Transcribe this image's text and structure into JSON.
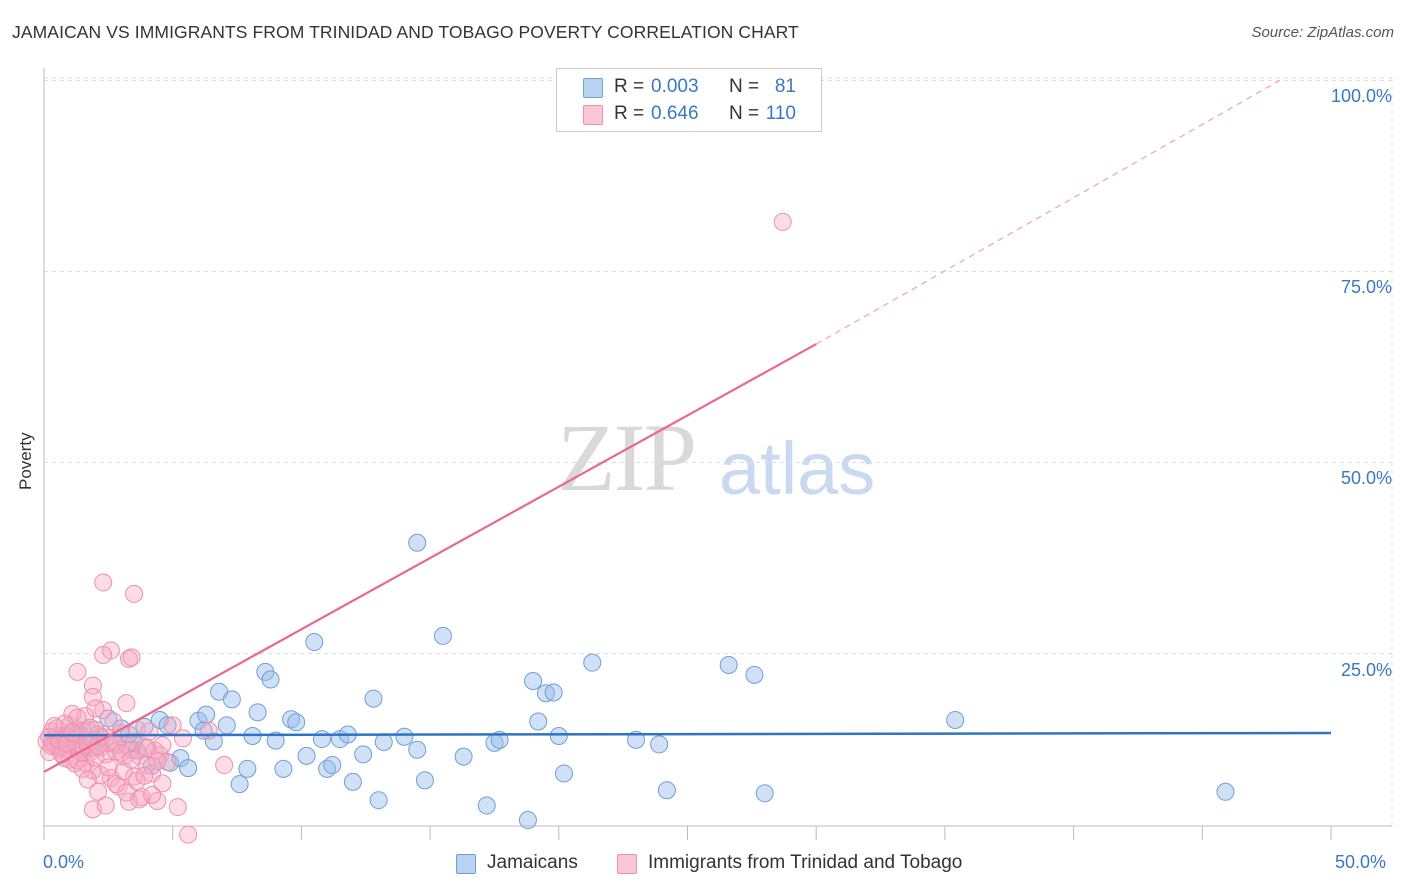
{
  "header": {
    "title": "JAMAICAN VS IMMIGRANTS FROM TRINIDAD AND TOBAGO POVERTY CORRELATION CHART",
    "source": "Source: ZipAtlas.com"
  },
  "watermark": {
    "zip": "ZIP",
    "atlas": "atlas"
  },
  "legend": {
    "rows": [
      {
        "r_label": "R =",
        "r_value": "0.003",
        "n_label": "N =",
        "n_value": "81",
        "color": "#6f9fd8"
      },
      {
        "r_label": "R =",
        "r_value": "0.646",
        "n_label": "N =",
        "n_value": "110",
        "color": "#ef8fab"
      }
    ]
  },
  "bottom_legend": [
    {
      "label": "Jamaicans",
      "color": "#6f9fd8"
    },
    {
      "label": "Immigrants from Trinidad and Tobago",
      "color": "#ef8fab"
    }
  ],
  "colors": {
    "blue_line": "#2f73c4",
    "pink_line": "#e8688f",
    "tick_text": "#3b78c3",
    "grid": "#dddddd"
  },
  "chart_data": {
    "type": "scatter",
    "title": "JAMAICAN VS IMMIGRANTS FROM TRINIDAD AND TOBAGO POVERTY CORRELATION CHART",
    "xlabel": "",
    "ylabel": "Poverty",
    "xlim": [
      0,
      50
    ],
    "ylim": [
      0,
      105
    ],
    "x_tick_labels": [
      "0.0%",
      "50.0%"
    ],
    "y_ticks": [
      25,
      50,
      75,
      100
    ],
    "y_tick_labels": [
      "25.0%",
      "50.0%",
      "75.0%",
      "100.0%"
    ],
    "grid": true,
    "series": [
      {
        "name": "Jamaicans",
        "R": 0.003,
        "N": 81,
        "trend": {
          "x": [
            0,
            50
          ],
          "y": [
            14.3,
            14.6
          ]
        },
        "points": [
          [
            0.3,
            13.5
          ],
          [
            0.5,
            14.2
          ],
          [
            0.7,
            12.8
          ],
          [
            0.9,
            13.9
          ],
          [
            1.1,
            14.8
          ],
          [
            1.3,
            13.2
          ],
          [
            1.5,
            12.5
          ],
          [
            1.7,
            15.0
          ],
          [
            1.9,
            13.6
          ],
          [
            2.2,
            14.1
          ],
          [
            2.5,
            16.5
          ],
          [
            2.8,
            13.0
          ],
          [
            3.0,
            15.2
          ],
          [
            3.3,
            14.4
          ],
          [
            3.6,
            12.3
          ],
          [
            3.9,
            15.4
          ],
          [
            4.2,
            10.3
          ],
          [
            4.5,
            16.3
          ],
          [
            4.9,
            10.7
          ],
          [
            5.3,
            11.3
          ],
          [
            5.6,
            10.0
          ],
          [
            6.0,
            16.2
          ],
          [
            6.3,
            17.0
          ],
          [
            6.6,
            13.5
          ],
          [
            6.8,
            20.0
          ],
          [
            7.1,
            15.6
          ],
          [
            7.3,
            19.0
          ],
          [
            7.6,
            7.9
          ],
          [
            7.9,
            9.9
          ],
          [
            8.1,
            14.2
          ],
          [
            8.3,
            17.3
          ],
          [
            8.6,
            22.6
          ],
          [
            8.8,
            21.6
          ],
          [
            9.0,
            13.6
          ],
          [
            9.3,
            9.9
          ],
          [
            9.6,
            16.4
          ],
          [
            9.8,
            16.0
          ],
          [
            10.2,
            11.6
          ],
          [
            10.5,
            26.5
          ],
          [
            10.8,
            13.8
          ],
          [
            11.0,
            9.9
          ],
          [
            11.2,
            10.4
          ],
          [
            11.5,
            13.8
          ],
          [
            11.8,
            14.4
          ],
          [
            12.0,
            8.2
          ],
          [
            12.4,
            11.8
          ],
          [
            12.8,
            19.1
          ],
          [
            13.0,
            5.8
          ],
          [
            13.2,
            13.4
          ],
          [
            14.0,
            14.1
          ],
          [
            14.5,
            12.4
          ],
          [
            14.8,
            8.4
          ],
          [
            15.5,
            27.3
          ],
          [
            16.3,
            11.5
          ],
          [
            17.2,
            5.1
          ],
          [
            17.5,
            13.3
          ],
          [
            17.7,
            13.7
          ],
          [
            18.8,
            3.2
          ],
          [
            19.0,
            21.4
          ],
          [
            19.2,
            16.1
          ],
          [
            19.5,
            19.8
          ],
          [
            19.8,
            19.9
          ],
          [
            20.0,
            14.2
          ],
          [
            20.2,
            9.3
          ],
          [
            21.3,
            23.8
          ],
          [
            23.0,
            13.7
          ],
          [
            23.9,
            13.1
          ],
          [
            24.2,
            7.1
          ],
          [
            26.6,
            23.5
          ],
          [
            27.6,
            22.2
          ],
          [
            28.0,
            6.7
          ],
          [
            35.4,
            16.3
          ],
          [
            45.9,
            6.9
          ],
          [
            14.5,
            39.5
          ],
          [
            3.5,
            13.4
          ],
          [
            1.0,
            14.0
          ],
          [
            0.8,
            13.1
          ],
          [
            2.0,
            12.7
          ],
          [
            4.8,
            15.6
          ],
          [
            6.2,
            14.9
          ],
          [
            1.4,
            14.4
          ]
        ]
      },
      {
        "name": "Immigrants from Trinidad and Tobago",
        "R": 0.646,
        "N": 110,
        "trend": {
          "x": [
            0,
            30
          ],
          "y": [
            9.5,
            65.5
          ]
        },
        "trend_extension": {
          "x": [
            30,
            48
          ],
          "y": [
            65.5,
            100
          ]
        },
        "points": [
          [
            0.1,
            13.5
          ],
          [
            0.2,
            12.1
          ],
          [
            0.3,
            14.8
          ],
          [
            0.4,
            13.0
          ],
          [
            0.5,
            15.2
          ],
          [
            0.6,
            12.4
          ],
          [
            0.7,
            13.8
          ],
          [
            0.8,
            11.3
          ],
          [
            0.9,
            14.2
          ],
          [
            1.0,
            15.6
          ],
          [
            1.1,
            12.9
          ],
          [
            1.2,
            10.6
          ],
          [
            1.3,
            14.5
          ],
          [
            1.4,
            13.2
          ],
          [
            1.5,
            11.9
          ],
          [
            1.6,
            16.8
          ],
          [
            1.7,
            13.6
          ],
          [
            1.8,
            12.1
          ],
          [
            1.9,
            9.7
          ],
          [
            2.0,
            15.0
          ],
          [
            2.1,
            14.4
          ],
          [
            2.2,
            12.7
          ],
          [
            2.3,
            17.6
          ],
          [
            2.4,
            11.8
          ],
          [
            2.5,
            13.3
          ],
          [
            2.6,
            8.7
          ],
          [
            2.7,
            16.1
          ],
          [
            2.8,
            12.2
          ],
          [
            2.9,
            7.6
          ],
          [
            3.0,
            14.6
          ],
          [
            3.1,
            11.5
          ],
          [
            3.2,
            13.0
          ],
          [
            3.3,
            5.6
          ],
          [
            3.4,
            12.4
          ],
          [
            3.5,
            8.9
          ],
          [
            3.6,
            15.1
          ],
          [
            3.7,
            11.6
          ],
          [
            3.8,
            6.2
          ],
          [
            3.9,
            12.8
          ],
          [
            4.0,
            10.4
          ],
          [
            4.1,
            14.8
          ],
          [
            4.2,
            9.3
          ],
          [
            4.3,
            12.3
          ],
          [
            4.4,
            5.7
          ],
          [
            4.5,
            11.7
          ],
          [
            4.6,
            13.0
          ],
          [
            4.8,
            10.8
          ],
          [
            5.0,
            15.6
          ],
          [
            5.2,
            4.9
          ],
          [
            5.4,
            13.9
          ],
          [
            5.6,
            1.3
          ],
          [
            7.0,
            10.4
          ],
          [
            2.3,
            34.3
          ],
          [
            3.5,
            32.8
          ],
          [
            2.6,
            25.4
          ],
          [
            3.3,
            24.3
          ],
          [
            3.4,
            24.5
          ],
          [
            2.3,
            24.8
          ],
          [
            1.3,
            22.6
          ],
          [
            1.9,
            20.8
          ],
          [
            1.9,
            19.3
          ],
          [
            2.0,
            17.8
          ],
          [
            3.2,
            18.5
          ],
          [
            1.1,
            17.1
          ],
          [
            1.3,
            16.6
          ],
          [
            0.5,
            13.9
          ],
          [
            0.6,
            12.7
          ],
          [
            0.7,
            14.2
          ],
          [
            0.8,
            15.8
          ],
          [
            0.9,
            12.5
          ],
          [
            1.0,
            11.1
          ],
          [
            1.2,
            13.7
          ],
          [
            1.4,
            12.2
          ],
          [
            1.5,
            14.9
          ],
          [
            1.6,
            10.7
          ],
          [
            1.7,
            13.1
          ],
          [
            1.8,
            15.3
          ],
          [
            2.0,
            11.4
          ],
          [
            2.1,
            12.9
          ],
          [
            2.2,
            9.1
          ],
          [
            2.4,
            14.0
          ],
          [
            2.5,
            10.1
          ],
          [
            2.7,
            13.4
          ],
          [
            2.8,
            7.9
          ],
          [
            3.0,
            12.0
          ],
          [
            3.1,
            9.6
          ],
          [
            3.2,
            6.8
          ],
          [
            3.4,
            11.1
          ],
          [
            3.6,
            8.3
          ],
          [
            3.7,
            5.9
          ],
          [
            3.9,
            9.0
          ],
          [
            4.0,
            12.6
          ],
          [
            4.2,
            6.5
          ],
          [
            4.4,
            10.9
          ],
          [
            4.6,
            8.0
          ],
          [
            0.2,
            14.1
          ],
          [
            0.3,
            12.9
          ],
          [
            0.4,
            15.5
          ],
          [
            0.6,
            13.6
          ],
          [
            0.7,
            11.8
          ],
          [
            0.9,
            13.2
          ],
          [
            1.1,
            14.6
          ],
          [
            1.3,
            11.0
          ],
          [
            1.5,
            9.9
          ],
          [
            1.7,
            8.5
          ],
          [
            1.9,
            4.6
          ],
          [
            2.1,
            6.9
          ],
          [
            2.4,
            5.1
          ],
          [
            28.7,
            81.5
          ],
          [
            6.4,
            14.9
          ]
        ]
      }
    ]
  }
}
